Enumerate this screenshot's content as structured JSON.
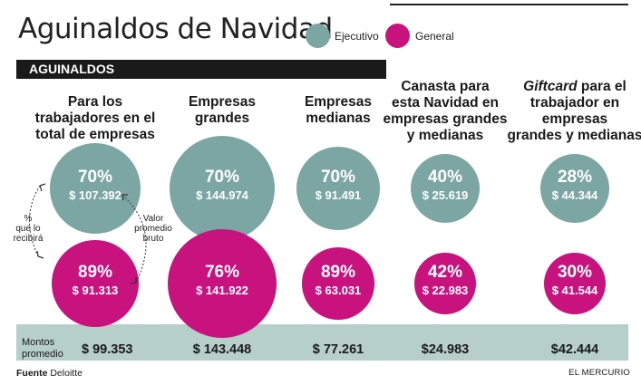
{
  "header": {
    "title": "Aguinaldos de Navidad",
    "section_label": "AGUINALDOS"
  },
  "legend": [
    {
      "label": "Ejecutivo",
      "color": "#7ba6a3"
    },
    {
      "label": "General",
      "color": "#c8137f"
    }
  ],
  "colors": {
    "ejecutivo": "#7ba6a3",
    "general": "#c8137f",
    "band": "#b6cfc9",
    "section": "#1a1a1a"
  },
  "annotations": {
    "pct_label": "% que lo recibirá",
    "value_label": "Valor promedio bruto"
  },
  "averages": {
    "label": "Montos promedio"
  },
  "footer": {
    "source_label": "Fuente",
    "source_name": "Deloitte",
    "credit": "EL MERCURIO"
  },
  "chart_data": {
    "type": "bubble",
    "series": [
      {
        "name": "Ejecutivo",
        "color": "#7ba6a3"
      },
      {
        "name": "General",
        "color": "#c8137f"
      }
    ],
    "columns": [
      {
        "header": [
          "Para los",
          "trabajadores en el",
          "total de empresas"
        ],
        "ejecutivo": {
          "pct": "70%",
          "amount": "$ 107.392",
          "pct_value": 70,
          "amount_value": 107392
        },
        "general": {
          "pct": "89%",
          "amount": "$ 91.313",
          "pct_value": 89,
          "amount_value": 91313
        },
        "average": "$ 99.353",
        "average_value": 99353
      },
      {
        "header": [
          "Empresas",
          "grandes"
        ],
        "ejecutivo": {
          "pct": "70%",
          "amount": "$ 144.974",
          "pct_value": 70,
          "amount_value": 144974
        },
        "general": {
          "pct": "76%",
          "amount": "$ 141.922",
          "pct_value": 76,
          "amount_value": 141922
        },
        "average": "$ 143.448",
        "average_value": 143448
      },
      {
        "header": [
          "Empresas",
          "medianas"
        ],
        "ejecutivo": {
          "pct": "70%",
          "amount": "$ 91.491",
          "pct_value": 70,
          "amount_value": 91491
        },
        "general": {
          "pct": "89%",
          "amount": "$ 63.031",
          "pct_value": 89,
          "amount_value": 63031
        },
        "average": "$ 77.261",
        "average_value": 77261
      },
      {
        "header": [
          "Canasta para",
          "esta Navidad en",
          "empresas grandes",
          "y medianas"
        ],
        "ejecutivo": {
          "pct": "40%",
          "amount": "$ 25.619",
          "pct_value": 40,
          "amount_value": 25619
        },
        "general": {
          "pct": "42%",
          "amount": "$ 22.983",
          "pct_value": 42,
          "amount_value": 22983
        },
        "average": "$24.983",
        "average_value": 24983
      },
      {
        "header": [
          "Giftcard para el",
          "trabajador en",
          "empresas",
          "grandes y medianas"
        ],
        "header_italic_word": "Giftcard",
        "ejecutivo": {
          "pct": "28%",
          "amount": "$ 44.344",
          "pct_value": 28,
          "amount_value": 44344
        },
        "general": {
          "pct": "30%",
          "amount": "$ 41.544",
          "pct_value": 30,
          "amount_value": 41544
        },
        "average": "$42.444",
        "average_value": 42444
      }
    ]
  }
}
